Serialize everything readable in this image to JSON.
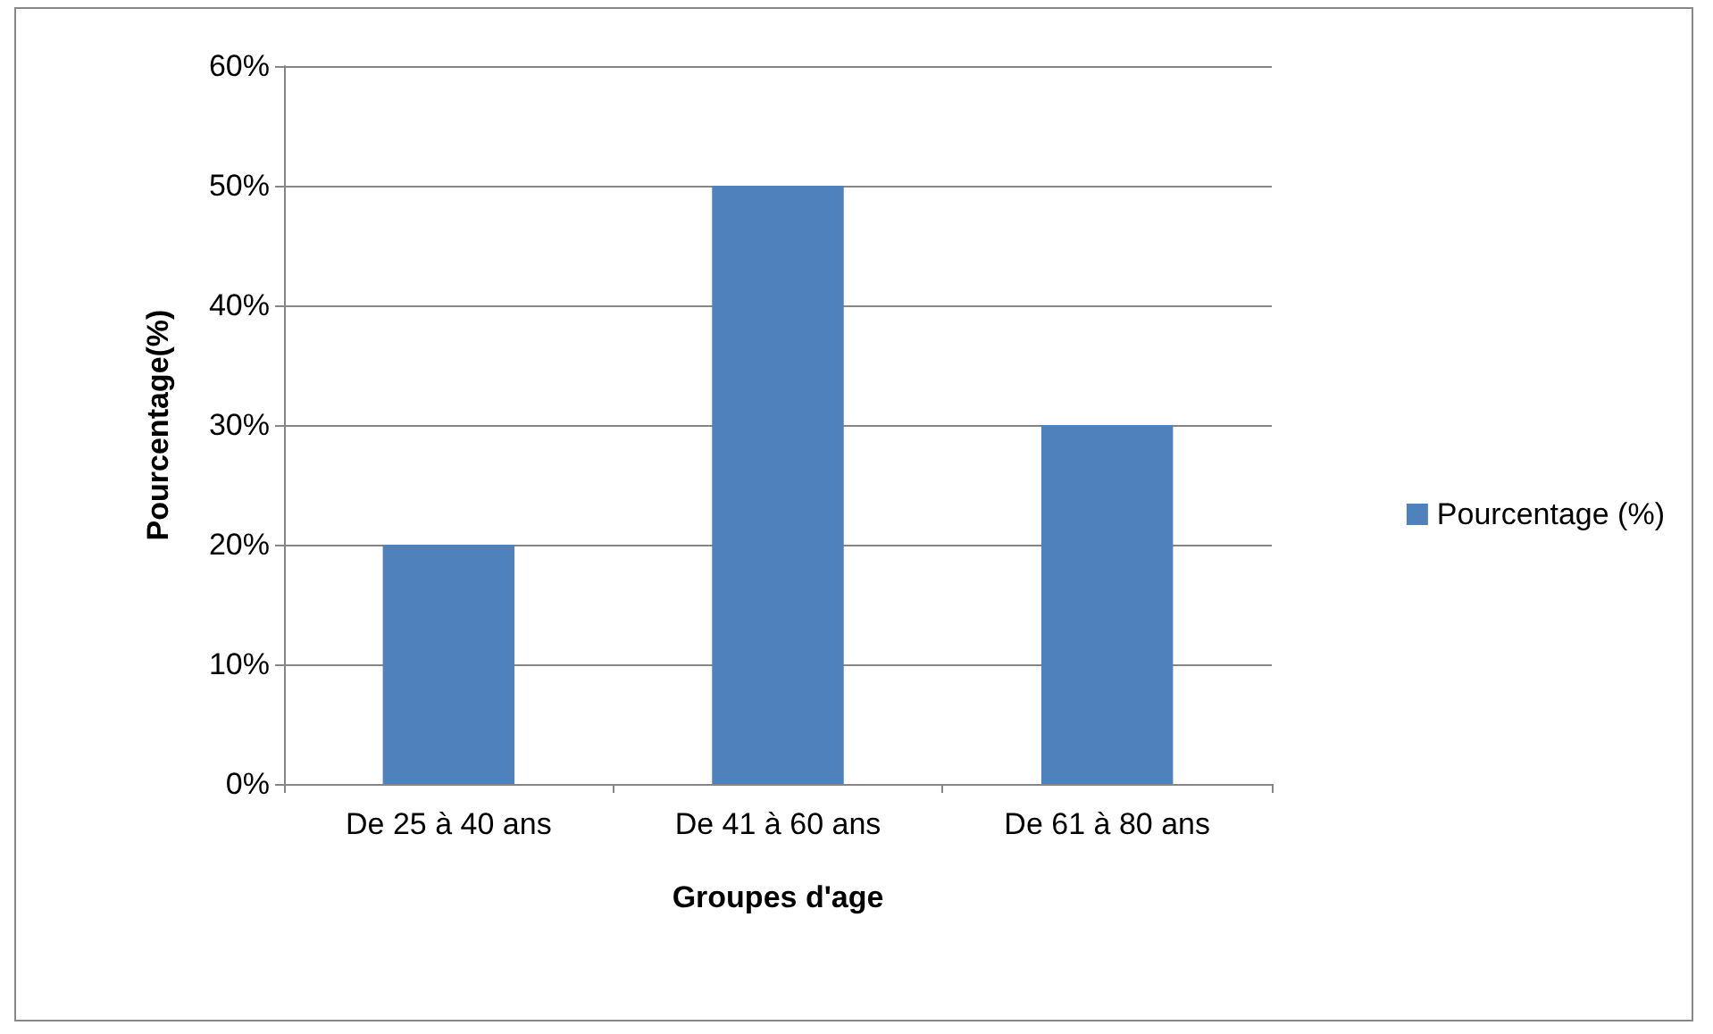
{
  "chart_data": {
    "type": "bar",
    "xlabel": "Groupes d'age",
    "ylabel": "Pourcentage(%)",
    "categories": [
      "De 25 à 40 ans",
      "De 41 à 60 ans",
      "De 61 à 80 ans"
    ],
    "series": [
      {
        "name": "Pourcentage (%)",
        "color": "#4f81bd",
        "values": [
          20,
          50,
          30
        ]
      }
    ],
    "ylim": [
      0,
      60
    ],
    "yticks": [
      {
        "value": 0,
        "label": "0%"
      },
      {
        "value": 10,
        "label": "10%"
      },
      {
        "value": 20,
        "label": "20%"
      },
      {
        "value": 30,
        "label": "30%"
      },
      {
        "value": 40,
        "label": "40%"
      },
      {
        "value": 50,
        "label": "50%"
      },
      {
        "value": 60,
        "label": "60%"
      }
    ],
    "grid": "y",
    "legend": "right"
  }
}
